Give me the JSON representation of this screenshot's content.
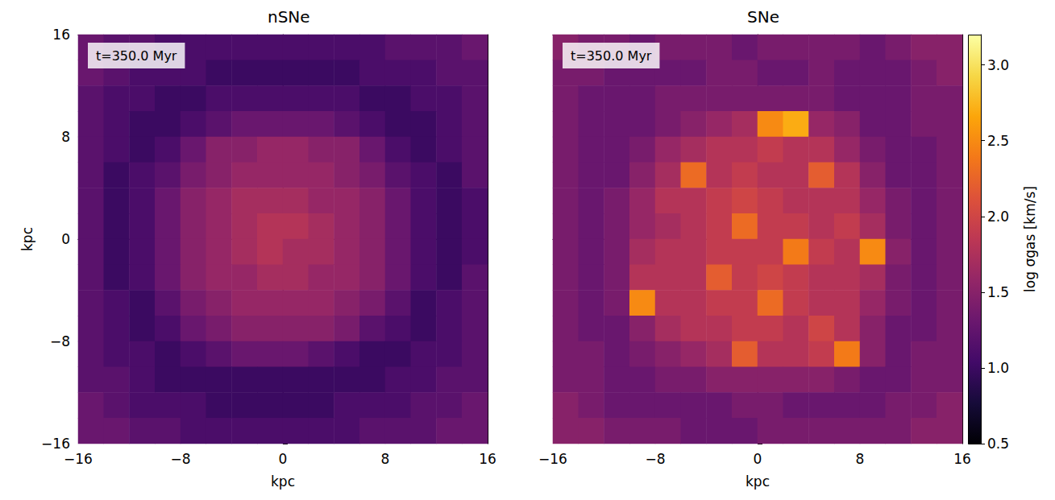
{
  "chart_data": [
    {
      "type": "heatmap",
      "title": "nSNe",
      "annotation": "t=350.0 Myr",
      "xlabel": "kpc",
      "ylabel": "kpc",
      "xlim": [
        -16,
        16
      ],
      "ylim": [
        -16,
        16
      ],
      "xticks": [
        {
          "value": -16,
          "label": "−16"
        },
        {
          "value": -8,
          "label": "−8"
        },
        0,
        8,
        16
      ],
      "yticks": [
        {
          "value": -16,
          "label": "−16"
        },
        {
          "value": -8,
          "label": "−8"
        },
        0,
        8,
        16
      ],
      "cells": [
        [
          1.3,
          1.2,
          1.2,
          1.1,
          1.1,
          1.1,
          1.1,
          1.1,
          1.1,
          1.1,
          1.1,
          1.1,
          1.2,
          1.2,
          1.2,
          1.3
        ],
        [
          1.3,
          1.2,
          1.1,
          1.1,
          1.1,
          1.0,
          1.0,
          1.0,
          1.0,
          1.0,
          1.0,
          1.1,
          1.1,
          1.1,
          1.2,
          1.2
        ],
        [
          1.2,
          1.1,
          1.1,
          1.0,
          1.0,
          1.1,
          1.1,
          1.1,
          1.1,
          1.1,
          1.1,
          1.0,
          1.0,
          1.1,
          1.1,
          1.2
        ],
        [
          1.2,
          1.1,
          1.0,
          1.0,
          1.1,
          1.2,
          1.3,
          1.3,
          1.3,
          1.3,
          1.2,
          1.1,
          1.0,
          1.0,
          1.1,
          1.2
        ],
        [
          1.2,
          1.1,
          1.0,
          1.1,
          1.3,
          1.5,
          1.5,
          1.6,
          1.6,
          1.5,
          1.5,
          1.3,
          1.1,
          1.0,
          1.1,
          1.2
        ],
        [
          1.2,
          1.0,
          1.1,
          1.2,
          1.4,
          1.5,
          1.6,
          1.6,
          1.6,
          1.6,
          1.5,
          1.4,
          1.2,
          1.1,
          1.0,
          1.2
        ],
        [
          1.2,
          1.0,
          1.1,
          1.3,
          1.5,
          1.6,
          1.7,
          1.7,
          1.7,
          1.6,
          1.6,
          1.5,
          1.3,
          1.1,
          1.0,
          1.1
        ],
        [
          1.2,
          1.0,
          1.1,
          1.3,
          1.5,
          1.6,
          1.7,
          1.8,
          1.8,
          1.7,
          1.6,
          1.5,
          1.3,
          1.1,
          1.0,
          1.1
        ],
        [
          1.2,
          1.0,
          1.1,
          1.3,
          1.5,
          1.6,
          1.7,
          1.8,
          1.7,
          1.7,
          1.6,
          1.5,
          1.3,
          1.1,
          1.0,
          1.1
        ],
        [
          1.2,
          1.0,
          1.1,
          1.3,
          1.5,
          1.6,
          1.6,
          1.7,
          1.7,
          1.6,
          1.6,
          1.5,
          1.3,
          1.1,
          1.0,
          1.2
        ],
        [
          1.2,
          1.1,
          1.0,
          1.2,
          1.4,
          1.5,
          1.6,
          1.6,
          1.6,
          1.6,
          1.5,
          1.4,
          1.2,
          1.0,
          1.1,
          1.2
        ],
        [
          1.2,
          1.1,
          1.0,
          1.1,
          1.3,
          1.4,
          1.5,
          1.5,
          1.5,
          1.5,
          1.4,
          1.2,
          1.1,
          1.0,
          1.1,
          1.2
        ],
        [
          1.2,
          1.1,
          1.1,
          1.0,
          1.1,
          1.2,
          1.3,
          1.3,
          1.3,
          1.2,
          1.1,
          1.0,
          1.0,
          1.1,
          1.1,
          1.2
        ],
        [
          1.2,
          1.2,
          1.1,
          1.0,
          1.0,
          1.0,
          1.0,
          1.0,
          1.0,
          1.0,
          1.0,
          1.0,
          1.1,
          1.1,
          1.2,
          1.2
        ],
        [
          1.3,
          1.2,
          1.1,
          1.1,
          1.1,
          1.0,
          1.0,
          1.0,
          1.0,
          1.0,
          1.1,
          1.1,
          1.1,
          1.2,
          1.2,
          1.3
        ],
        [
          1.3,
          1.3,
          1.2,
          1.2,
          1.1,
          1.1,
          1.1,
          1.1,
          1.1,
          1.1,
          1.1,
          1.2,
          1.2,
          1.2,
          1.3,
          1.3
        ]
      ]
    },
    {
      "type": "heatmap",
      "title": "SNe",
      "annotation": "t=350.0 Myr",
      "xlabel": "kpc",
      "tick_labels": "x",
      "xlim": [
        -16,
        16
      ],
      "ylim": [
        -16,
        16
      ],
      "xticks": [
        {
          "value": -16,
          "label": "−16"
        },
        {
          "value": -8,
          "label": "−8"
        },
        0,
        8,
        16
      ],
      "yticks": [
        -16,
        -8,
        0,
        8,
        16
      ],
      "cells": [
        [
          1.5,
          1.4,
          1.4,
          1.3,
          1.4,
          1.4,
          1.4,
          1.3,
          1.4,
          1.4,
          1.4,
          1.4,
          1.3,
          1.4,
          1.5,
          1.5
        ],
        [
          1.4,
          1.4,
          1.3,
          1.3,
          1.3,
          1.3,
          1.4,
          1.4,
          1.3,
          1.3,
          1.4,
          1.3,
          1.3,
          1.3,
          1.4,
          1.5
        ],
        [
          1.4,
          1.3,
          1.3,
          1.3,
          1.4,
          1.4,
          1.4,
          1.4,
          1.4,
          1.4,
          1.4,
          1.3,
          1.3,
          1.3,
          1.4,
          1.4
        ],
        [
          1.4,
          1.3,
          1.3,
          1.3,
          1.4,
          1.5,
          1.6,
          1.7,
          2.5,
          2.7,
          1.6,
          1.5,
          1.3,
          1.3,
          1.4,
          1.4
        ],
        [
          1.4,
          1.3,
          1.3,
          1.4,
          1.6,
          1.7,
          1.8,
          1.8,
          1.9,
          1.8,
          1.8,
          1.6,
          1.4,
          1.3,
          1.3,
          1.4
        ],
        [
          1.4,
          1.3,
          1.3,
          1.5,
          1.7,
          2.3,
          1.8,
          1.9,
          1.8,
          1.8,
          2.2,
          1.8,
          1.5,
          1.3,
          1.3,
          1.4
        ],
        [
          1.4,
          1.3,
          1.4,
          1.6,
          1.8,
          1.8,
          1.9,
          2.0,
          1.9,
          1.8,
          1.8,
          1.8,
          1.6,
          1.4,
          1.3,
          1.4
        ],
        [
          1.4,
          1.3,
          1.4,
          1.6,
          1.7,
          1.8,
          1.9,
          2.3,
          1.9,
          1.9,
          1.8,
          1.9,
          1.7,
          1.4,
          1.3,
          1.4
        ],
        [
          1.4,
          1.3,
          1.4,
          1.7,
          1.8,
          1.8,
          1.9,
          1.9,
          1.9,
          2.4,
          1.9,
          1.8,
          2.5,
          1.5,
          1.3,
          1.4
        ],
        [
          1.4,
          1.3,
          1.4,
          1.8,
          1.8,
          1.8,
          2.2,
          1.9,
          2.0,
          1.9,
          1.8,
          1.8,
          1.7,
          1.4,
          1.3,
          1.4
        ],
        [
          1.4,
          1.3,
          1.4,
          2.5,
          1.8,
          1.8,
          1.9,
          1.9,
          2.3,
          1.9,
          1.8,
          1.8,
          1.6,
          1.4,
          1.3,
          1.4
        ],
        [
          1.4,
          1.3,
          1.3,
          1.5,
          1.7,
          1.8,
          1.8,
          1.9,
          1.9,
          1.8,
          2.0,
          1.8,
          1.5,
          1.3,
          1.3,
          1.4
        ],
        [
          1.4,
          1.4,
          1.3,
          1.4,
          1.5,
          1.6,
          1.7,
          2.2,
          1.8,
          1.8,
          1.9,
          2.4,
          1.5,
          1.3,
          1.4,
          1.4
        ],
        [
          1.4,
          1.4,
          1.3,
          1.3,
          1.4,
          1.4,
          1.5,
          1.5,
          1.5,
          1.5,
          1.5,
          1.4,
          1.3,
          1.3,
          1.4,
          1.4
        ],
        [
          1.5,
          1.4,
          1.3,
          1.3,
          1.3,
          1.3,
          1.3,
          1.4,
          1.4,
          1.3,
          1.3,
          1.3,
          1.3,
          1.4,
          1.4,
          1.5
        ],
        [
          1.5,
          1.5,
          1.4,
          1.4,
          1.4,
          1.3,
          1.3,
          1.3,
          1.4,
          1.4,
          1.4,
          1.4,
          1.4,
          1.4,
          1.5,
          1.5
        ]
      ],
      "colorbar": {
        "label": "log σgas [km/s]",
        "range": [
          0.5,
          3.2
        ],
        "ticks": [
          {
            "value": 0.5,
            "label": "0.5"
          },
          {
            "value": 1.0,
            "label": "1.0"
          },
          {
            "value": 1.5,
            "label": "1.5"
          },
          {
            "value": 2.0,
            "label": "2.0"
          },
          {
            "value": 2.5,
            "label": "2.5"
          },
          {
            "value": 3.0,
            "label": "3.0"
          }
        ]
      }
    }
  ]
}
